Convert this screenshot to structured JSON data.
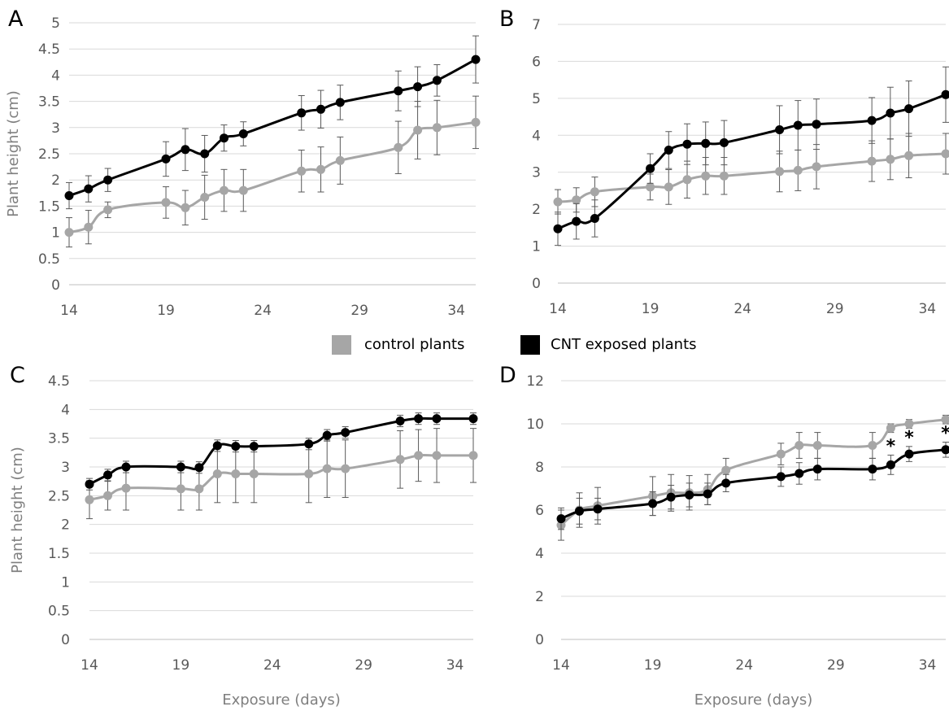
{
  "legend": [
    {
      "label": "control plants",
      "color": "#a6a6a6"
    },
    {
      "label": "CNT exposed plants",
      "color": "#000000"
    }
  ],
  "chart_data": [
    {
      "panel": "A",
      "type": "line",
      "ylabel": "Plant height (cm)",
      "xlabel": "",
      "x_ticks": [
        14,
        19,
        24,
        29,
        34
      ],
      "y_ticks": [
        "0",
        "0.5",
        "1",
        "1.5",
        "2",
        "2.5",
        "3",
        "3.5",
        "4",
        "4.5",
        "5"
      ],
      "xlim": [
        14,
        35
      ],
      "ylim": [
        0,
        5
      ],
      "grid": "horizontal",
      "error_bars": true,
      "x": [
        14,
        15,
        16,
        19,
        20,
        21,
        22,
        23,
        26,
        27,
        28,
        31,
        32,
        33,
        35
      ],
      "series": [
        {
          "name": "control plants",
          "color": "#a6a6a6",
          "values": [
            1.0,
            1.1,
            1.43,
            1.57,
            1.47,
            1.67,
            1.8,
            1.8,
            2.17,
            2.2,
            2.37,
            2.62,
            2.95,
            3.0,
            3.1
          ],
          "errors": [
            0.28,
            0.32,
            0.15,
            0.3,
            0.33,
            0.42,
            0.4,
            0.4,
            0.4,
            0.43,
            0.45,
            0.5,
            0.55,
            0.52,
            0.5
          ]
        },
        {
          "name": "CNT exposed plants",
          "color": "#000000",
          "values": [
            1.7,
            1.83,
            2.0,
            2.4,
            2.58,
            2.5,
            2.8,
            2.88,
            3.28,
            3.35,
            3.48,
            3.7,
            3.78,
            3.9,
            4.3
          ],
          "errors": [
            0.25,
            0.25,
            0.22,
            0.33,
            0.4,
            0.35,
            0.25,
            0.23,
            0.33,
            0.36,
            0.33,
            0.38,
            0.38,
            0.3,
            0.45
          ]
        }
      ],
      "annotations": []
    },
    {
      "panel": "B",
      "type": "line",
      "ylabel": "",
      "xlabel": "",
      "x_ticks": [
        14,
        19,
        24,
        29,
        34
      ],
      "y_ticks": [
        "0",
        "1",
        "2",
        "3",
        "4",
        "5",
        "6",
        "7"
      ],
      "xlim": [
        14,
        35
      ],
      "ylim": [
        0,
        7
      ],
      "grid": "horizontal",
      "error_bars": true,
      "x": [
        14,
        15,
        16,
        19,
        20,
        21,
        22,
        23,
        26,
        27,
        28,
        31,
        32,
        33,
        35
      ],
      "series": [
        {
          "name": "control plants",
          "color": "#a6a6a6",
          "values": [
            2.2,
            2.25,
            2.47,
            2.6,
            2.6,
            2.8,
            2.9,
            2.9,
            3.02,
            3.05,
            3.15,
            3.3,
            3.35,
            3.45,
            3.5
          ],
          "errors": [
            0.33,
            0.33,
            0.4,
            0.35,
            0.47,
            0.5,
            0.5,
            0.5,
            0.55,
            0.55,
            0.6,
            0.55,
            0.55,
            0.6,
            0.55
          ]
        },
        {
          "name": "CNT exposed plants",
          "color": "#000000",
          "values": [
            1.47,
            1.67,
            1.75,
            3.1,
            3.6,
            3.76,
            3.78,
            3.8,
            4.15,
            4.27,
            4.3,
            4.4,
            4.6,
            4.72,
            5.1
          ],
          "errors": [
            0.45,
            0.48,
            0.5,
            0.4,
            0.5,
            0.55,
            0.58,
            0.6,
            0.65,
            0.67,
            0.68,
            0.62,
            0.7,
            0.75,
            0.75
          ]
        }
      ],
      "annotations": []
    },
    {
      "panel": "C",
      "type": "line",
      "ylabel": "Plant height (cm)",
      "xlabel": "Exposure (days)",
      "x_ticks": [
        14,
        19,
        24,
        29,
        34
      ],
      "y_ticks": [
        "0",
        "0.5",
        "1",
        "1.5",
        "2",
        "2.5",
        "3",
        "3.5",
        "4",
        "4.5"
      ],
      "xlim": [
        14,
        35
      ],
      "ylim": [
        0,
        4.5
      ],
      "grid": "horizontal",
      "error_bars": true,
      "x": [
        14,
        15,
        16,
        19,
        20,
        21,
        22,
        23,
        26,
        27,
        28,
        31,
        32,
        33,
        35
      ],
      "series": [
        {
          "name": "control plants",
          "color": "#a6a6a6",
          "values": [
            2.43,
            2.5,
            2.63,
            2.62,
            2.62,
            2.88,
            2.88,
            2.88,
            2.88,
            2.97,
            2.97,
            3.13,
            3.2,
            3.2,
            3.2
          ],
          "errors": [
            0.33,
            0.25,
            0.38,
            0.37,
            0.37,
            0.5,
            0.5,
            0.5,
            0.5,
            0.5,
            0.5,
            0.5,
            0.45,
            0.47,
            0.47
          ]
        },
        {
          "name": "CNT exposed plants",
          "color": "#000000",
          "values": [
            2.7,
            2.86,
            3.0,
            3.0,
            2.99,
            3.37,
            3.36,
            3.36,
            3.4,
            3.55,
            3.6,
            3.8,
            3.84,
            3.84,
            3.84
          ],
          "errors": [
            0.1,
            0.1,
            0.1,
            0.1,
            0.1,
            0.1,
            0.1,
            0.1,
            0.1,
            0.1,
            0.1,
            0.1,
            0.1,
            0.1,
            0.1
          ]
        }
      ],
      "annotations": []
    },
    {
      "panel": "D",
      "type": "line",
      "ylabel": "",
      "xlabel": "Exposure (days)",
      "x_ticks": [
        14,
        19,
        24,
        29,
        34
      ],
      "y_ticks": [
        "0",
        "2",
        "4",
        "6",
        "8",
        "10",
        "12"
      ],
      "xlim": [
        14,
        35
      ],
      "ylim": [
        0,
        12
      ],
      "grid": "horizontal",
      "error_bars": true,
      "x": [
        14,
        15,
        16,
        19,
        20,
        21,
        22,
        23,
        26,
        27,
        28,
        31,
        32,
        33,
        35
      ],
      "series": [
        {
          "name": "control plants",
          "color": "#a6a6a6",
          "values": [
            5.3,
            6.0,
            6.2,
            6.65,
            6.8,
            6.8,
            6.95,
            7.85,
            8.6,
            9.0,
            9.0,
            9.0,
            9.8,
            10.0,
            10.2
          ],
          "errors": [
            0.7,
            0.8,
            0.85,
            0.9,
            0.85,
            0.8,
            0.7,
            0.55,
            0.5,
            0.6,
            0.6,
            0.6,
            0.2,
            0.2,
            0.2
          ]
        },
        {
          "name": "CNT exposed plants",
          "color": "#000000",
          "values": [
            5.6,
            5.95,
            6.05,
            6.3,
            6.6,
            6.7,
            6.75,
            7.25,
            7.55,
            7.7,
            7.9,
            7.9,
            8.1,
            8.6,
            8.8
          ],
          "errors": [
            0.5,
            0.6,
            0.5,
            0.55,
            0.55,
            0.55,
            0.5,
            0.4,
            0.45,
            0.5,
            0.5,
            0.5,
            0.45,
            0.35,
            0.35
          ]
        }
      ],
      "annotations": [
        {
          "text": "*",
          "x": 32
        },
        {
          "text": "*",
          "x": 33
        },
        {
          "text": "*",
          "x": 35
        }
      ]
    }
  ]
}
